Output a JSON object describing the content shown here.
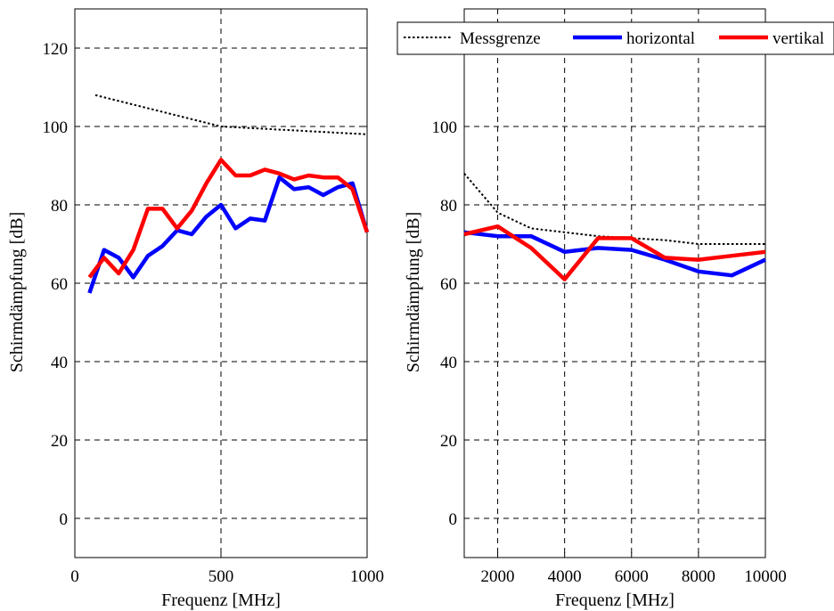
{
  "chart_data": [
    {
      "type": "line",
      "xlabel": "Frequenz [MHz]",
      "ylabel": "Schirmdämpfung [dB]",
      "xlim": [
        0,
        1000
      ],
      "ylim": [
        -10,
        130
      ],
      "xticks": [
        0,
        500,
        1000
      ],
      "yticks": [
        0,
        20,
        40,
        60,
        80,
        100,
        120
      ],
      "grid": true,
      "series": [
        {
          "name": "Messgrenze",
          "color": "#000000",
          "style": "dotted",
          "x": [
            70,
            500,
            1000
          ],
          "y": [
            108,
            100,
            98
          ]
        },
        {
          "name": "horizontal",
          "color": "#0000ff",
          "style": "solid",
          "x": [
            50,
            100,
            150,
            200,
            250,
            300,
            350,
            400,
            450,
            500,
            550,
            600,
            650,
            700,
            750,
            800,
            850,
            900,
            950,
            1000
          ],
          "y": [
            57.5,
            68.5,
            66.5,
            61.5,
            67,
            69.5,
            73.5,
            72.5,
            77,
            80,
            74,
            76.5,
            76,
            87,
            84,
            84.5,
            82.5,
            84.5,
            85.5,
            73
          ]
        },
        {
          "name": "vertikal",
          "color": "#ff0000",
          "style": "solid",
          "x": [
            50,
            100,
            150,
            200,
            250,
            300,
            350,
            400,
            450,
            500,
            550,
            600,
            650,
            700,
            750,
            800,
            850,
            900,
            950,
            1000
          ],
          "y": [
            61.5,
            66.5,
            62.5,
            68.5,
            79,
            79,
            74,
            78.5,
            85.5,
            91.5,
            87.5,
            87.5,
            89,
            88,
            86.5,
            87.5,
            87,
            87,
            84,
            73
          ]
        }
      ]
    },
    {
      "type": "line",
      "xlabel": "Frequenz [MHz]",
      "ylabel": "Schirmdämpfung [dB]",
      "xlim": [
        1000,
        10000
      ],
      "ylim": [
        -10,
        130
      ],
      "xticks": [
        2000,
        4000,
        6000,
        8000,
        10000
      ],
      "yticks": [
        0,
        20,
        40,
        60,
        80,
        100,
        120
      ],
      "grid": true,
      "legend": {
        "placement": "top-right",
        "orientation": "horizontal"
      },
      "series": [
        {
          "name": "Messgrenze",
          "color": "#000000",
          "style": "dotted",
          "x": [
            1000,
            2000,
            3000,
            4000,
            5000,
            6000,
            7000,
            8000,
            9000,
            10000
          ],
          "y": [
            88,
            78,
            74,
            73,
            72,
            71.5,
            71,
            70,
            70,
            70
          ]
        },
        {
          "name": "horizontal",
          "color": "#0000ff",
          "style": "solid",
          "x": [
            1000,
            2000,
            3000,
            4000,
            5000,
            6000,
            7000,
            8000,
            9000,
            10000
          ],
          "y": [
            73,
            72,
            72,
            68,
            69,
            68.5,
            66,
            63,
            62,
            66
          ]
        },
        {
          "name": "vertikal",
          "color": "#ff0000",
          "style": "solid",
          "x": [
            1000,
            2000,
            3000,
            4000,
            5000,
            6000,
            7000,
            8000,
            9000,
            10000
          ],
          "y": [
            72.5,
            74.5,
            69,
            61,
            71.5,
            71.5,
            66.5,
            66,
            67,
            68
          ]
        }
      ]
    }
  ]
}
